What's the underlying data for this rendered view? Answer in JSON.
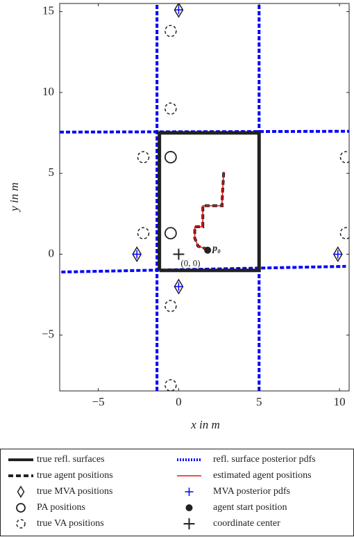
{
  "chart_data": {
    "type": "line",
    "xlabel": "x in m",
    "ylabel": "y in m",
    "xlim": [
      -7.4,
      10.6
    ],
    "ylim": [
      -8.45,
      15.5
    ],
    "xticks": [
      {
        "value": -5,
        "label": "−5"
      },
      0,
      5,
      10
    ],
    "yticks": [
      {
        "value": -5,
        "label": "−5"
      },
      0,
      5,
      10,
      15
    ],
    "annotations": [
      "p₀",
      "(0, 0)"
    ],
    "series": [
      {
        "name": "true refl. surfaces",
        "color": "#222222",
        "style": "solid",
        "x": [
          -1.2,
          5,
          5,
          -1.2,
          -1.2
        ],
        "y": [
          -1,
          -1,
          7.5,
          7.5,
          -1
        ]
      },
      {
        "name": "true agent positions",
        "color": "#222222",
        "style": "dashed",
        "x": [
          1.8,
          1.2,
          1,
          1,
          1.5,
          1.5,
          2.7,
          2.7,
          2.8
        ],
        "y": [
          0.3,
          0.5,
          1,
          1.7,
          1.7,
          3,
          3,
          3.3,
          5.1
        ]
      },
      {
        "name": "true MVA positions",
        "color": "#222222",
        "marker": "diamond",
        "x": [
          0,
          -2.6,
          9.9,
          0
        ],
        "y": [
          15.1,
          0,
          0,
          -2
        ]
      },
      {
        "name": "PA positions",
        "color": "#222222",
        "marker": "circle",
        "x": [
          -0.5,
          -0.5
        ],
        "y": [
          6,
          1.3
        ]
      },
      {
        "name": "true VA positions",
        "color": "#222222",
        "marker": "dashed-circle",
        "x": [
          -0.5,
          -0.5,
          -2.2,
          -2.2,
          10.4,
          10.4,
          -0.5,
          -0.5
        ],
        "y": [
          13.8,
          9,
          6,
          1.3,
          6,
          1.3,
          -3.2,
          -8.1
        ]
      },
      {
        "name": "refl. surface posterior pdfs",
        "color": "#0000ff",
        "style": "dotted",
        "x": [
          -1.35,
          -1.35,
          null,
          5,
          5,
          null,
          -7.4,
          10.6,
          null,
          -7.3,
          10.4
        ],
        "y": [
          -8.45,
          15.5,
          null,
          -8.45,
          15.5,
          null,
          7.55,
          7.6,
          null,
          -1.1,
          -0.75
        ]
      },
      {
        "name": "estimated agent positions",
        "color": "#ee1111",
        "style": "thin",
        "x": [
          1.8,
          1.2,
          1,
          1,
          1.5,
          1.5,
          2.7,
          2.7,
          2.8
        ],
        "y": [
          0.3,
          0.5,
          1,
          1.7,
          1.7,
          3,
          3,
          3.3,
          5.1
        ]
      },
      {
        "name": "MVA posterior pdfs",
        "color": "#0000ff",
        "marker": "plus",
        "x": [
          0,
          -2.6,
          9.9,
          0
        ],
        "y": [
          15.1,
          0,
          0,
          -2
        ]
      },
      {
        "name": "agent start position",
        "color": "#222222",
        "marker": "dot",
        "x": [
          1.8
        ],
        "y": [
          0.25
        ]
      },
      {
        "name": "coordinate center",
        "color": "#222222",
        "marker": "big-plus",
        "x": [
          0
        ],
        "y": [
          0
        ]
      }
    ]
  }
}
